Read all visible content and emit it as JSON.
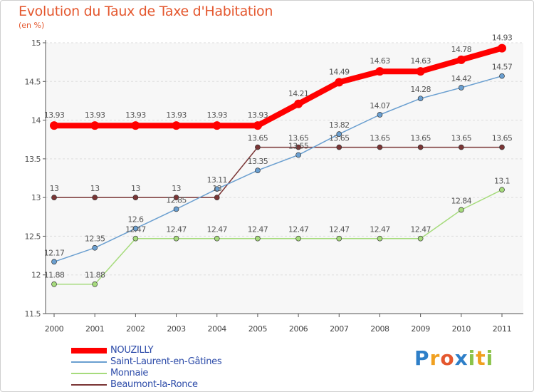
{
  "page": {
    "title": "Evolution du Taux de Taxe d'Habitation",
    "subtitle": "(en %)"
  },
  "chart_data": {
    "type": "line",
    "title": "Evolution du Taux de Taxe d'Habitation",
    "ylabel": "(en %)",
    "xlabel": "",
    "ylim": [
      11.5,
      15
    ],
    "yticks": [
      11.5,
      12,
      12.5,
      13,
      13.5,
      14,
      14.5,
      15
    ],
    "x": [
      "2000",
      "2001",
      "2002",
      "2003",
      "2004",
      "2005",
      "2006",
      "2007",
      "2008",
      "2009",
      "2010",
      "2011"
    ],
    "legend_position": "bottom-left",
    "grid": "horizontal",
    "series": [
      {
        "name": "NOUZILLY",
        "color": "#ff0000",
        "values": [
          13.93,
          13.93,
          13.93,
          13.93,
          13.93,
          13.93,
          14.21,
          14.49,
          14.63,
          14.63,
          14.78,
          14.93
        ],
        "labels": [
          "13.93",
          "13.93",
          "13.93",
          "13.93",
          "13.93",
          "13.93",
          "14.21",
          "14.49",
          "14.63",
          "14.63",
          "14.78",
          "14.93"
        ]
      },
      {
        "name": "Saint-Laurent-en-Gâtines",
        "color": "#6a9fd0",
        "values": [
          12.17,
          12.35,
          12.6,
          12.85,
          13.11,
          13.35,
          13.55,
          13.82,
          14.07,
          14.28,
          14.42,
          14.57
        ],
        "labels": [
          "12.17",
          "12.35",
          "12.6",
          "12.85",
          "13.11",
          "13.35",
          "13.55",
          "13.82",
          "14.07",
          "14.28",
          "14.42",
          "14.57"
        ]
      },
      {
        "name": "Monnaie",
        "color": "#a6db7c",
        "values": [
          11.88,
          11.88,
          12.47,
          12.47,
          12.47,
          12.47,
          12.47,
          12.47,
          12.47,
          12.47,
          12.84,
          13.1
        ],
        "labels": [
          "11.88",
          "11.88",
          "12.47",
          "12.47",
          "12.47",
          "12.47",
          "12.47",
          "12.47",
          "12.47",
          "12.47",
          "12.84",
          "13.1"
        ]
      },
      {
        "name": "Beaumont-la-Ronce",
        "color": "#7a3535",
        "values": [
          13,
          13,
          13,
          13,
          13,
          13.65,
          13.65,
          13.65,
          13.65,
          13.65,
          13.65,
          13.65
        ],
        "labels": [
          "13",
          "13",
          "13",
          "13",
          "13",
          "13.65",
          "13.65",
          "13.65",
          "13.65",
          "13.65",
          "13.65",
          "13.65"
        ]
      }
    ]
  },
  "legend": {
    "items": [
      {
        "label": "NOUZILLY",
        "color": "#ff0000",
        "thickness": 8
      },
      {
        "label": "Saint-Laurent-en-Gâtines",
        "color": "#6a9fd0",
        "thickness": 2
      },
      {
        "label": "Monnaie",
        "color": "#a6db7c",
        "thickness": 2
      },
      {
        "label": "Beaumont-la-Ronce",
        "color": "#7a3535",
        "thickness": 2
      }
    ]
  },
  "logo": {
    "letters": [
      {
        "char": "P",
        "color": "#2e7fc8"
      },
      {
        "char": "r",
        "color": "#f0a020"
      },
      {
        "char": "o",
        "color": "#e4572e"
      },
      {
        "char": "x",
        "color": "#2e7fc8"
      },
      {
        "char": "i",
        "color": "#8bc34a"
      },
      {
        "char": "t",
        "color": "#f0a020"
      },
      {
        "char": "i",
        "color": "#8bc34a"
      }
    ]
  }
}
